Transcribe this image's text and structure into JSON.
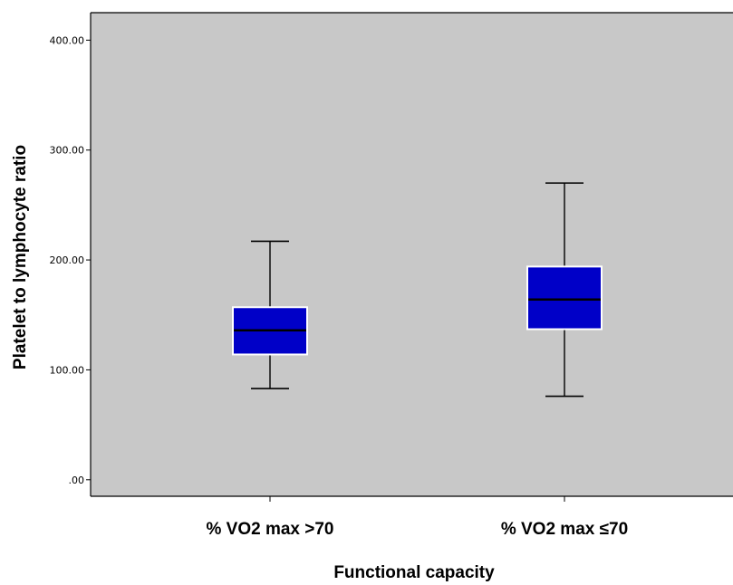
{
  "chart_data": {
    "type": "boxplot",
    "title": "",
    "xlabel": "Functional capacity",
    "ylabel": "Platelet to lymphocyte ratio",
    "ylim": [
      -15,
      425
    ],
    "yticks": [
      0,
      100,
      200,
      300,
      400
    ],
    "ytick_labels": [
      ".00",
      "100.00",
      "200.00",
      "300.00",
      "400.00"
    ],
    "grid": false,
    "categories": [
      "% VO2 max >70",
      "% VO2 max ≤70"
    ],
    "boxes": [
      {
        "category": "% VO2 max >70",
        "whisker_low": 83,
        "q1": 114,
        "median": 136,
        "q3": 157,
        "whisker_high": 217
      },
      {
        "category": "% VO2 max ≤70",
        "whisker_low": 76,
        "q1": 137,
        "median": 164,
        "q3": 194,
        "whisker_high": 270
      }
    ],
    "colors": {
      "plot_background": "#c8c8c8",
      "box_fill": "#0000c8",
      "box_edge": "#ffffff",
      "median_line": "#000000",
      "whisker": "#000000"
    }
  }
}
